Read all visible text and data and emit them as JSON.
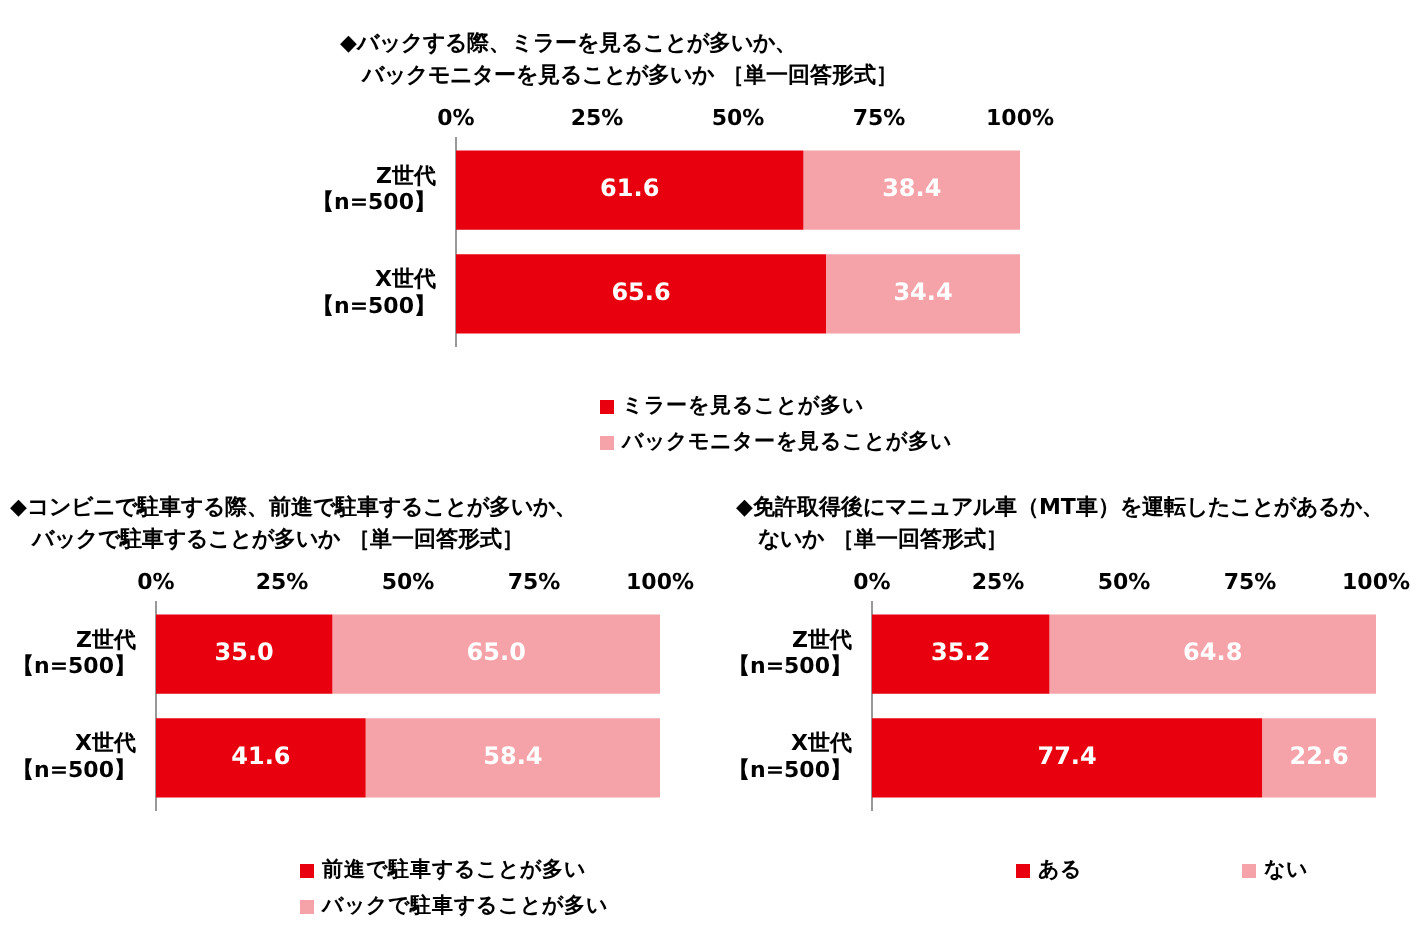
{
  "chart_data": [
    {
      "type": "bar",
      "orientation": "horizontal",
      "stacked": true,
      "title": "◆バックする際、ミラーを見ることが多いか、バックモニターを見ることが多いか ［単一回答形式］",
      "categories": [
        "Z世代【n=500】",
        "X世代【n=500】"
      ],
      "xlim": [
        0,
        100
      ],
      "xticks": [
        {
          "value": 0,
          "label": "0%"
        },
        {
          "value": 25,
          "label": "25%"
        },
        {
          "value": 50,
          "label": "50%"
        },
        {
          "value": 75,
          "label": "75%"
        },
        {
          "value": 100,
          "label": "100%"
        }
      ],
      "legend": "bottom",
      "series": [
        {
          "name": "ミラーを見ることが多い",
          "color": "#e8000f",
          "values": [
            61.6,
            65.6
          ],
          "value_labels": [
            "61.6",
            "65.6"
          ]
        },
        {
          "name": "バックモニターを見ることが多い",
          "color": "#f5a3a8",
          "values": [
            38.4,
            34.4
          ],
          "value_labels": [
            "38.4",
            "34.4"
          ]
        }
      ]
    },
    {
      "type": "bar",
      "orientation": "horizontal",
      "stacked": true,
      "title": "◆コンビニで駐車する際、前進で駐車することが多いか、バックで駐車することが多いか ［単一回答形式］",
      "categories": [
        "Z世代【n=500】",
        "X世代【n=500】"
      ],
      "xlim": [
        0,
        100
      ],
      "xticks": [
        {
          "value": 0,
          "label": "0%"
        },
        {
          "value": 25,
          "label": "25%"
        },
        {
          "value": 50,
          "label": "50%"
        },
        {
          "value": 75,
          "label": "75%"
        },
        {
          "value": 100,
          "label": "100%"
        }
      ],
      "legend": "bottom",
      "series": [
        {
          "name": "前進で駐車することが多い",
          "color": "#e8000f",
          "values": [
            35.0,
            41.6
          ],
          "value_labels": [
            "35.0",
            "41.6"
          ]
        },
        {
          "name": "バックで駐車することが多い",
          "color": "#f5a3a8",
          "values": [
            65.0,
            58.4
          ],
          "value_labels": [
            "65.0",
            "58.4"
          ]
        }
      ]
    },
    {
      "type": "bar",
      "orientation": "horizontal",
      "stacked": true,
      "title": "◆免許取得後にマニュアル車（MT車）を運転したことがあるか、ないか ［単一回答形式］",
      "categories": [
        "Z世代【n=500】",
        "X世代【n=500】"
      ],
      "xlim": [
        0,
        100
      ],
      "xticks": [
        {
          "value": 0,
          "label": "0%"
        },
        {
          "value": 25,
          "label": "25%"
        },
        {
          "value": 50,
          "label": "50%"
        },
        {
          "value": 75,
          "label": "75%"
        },
        {
          "value": 100,
          "label": "100%"
        }
      ],
      "legend": "bottom",
      "series": [
        {
          "name": "ある",
          "color": "#e8000f",
          "values": [
            35.2,
            77.4
          ],
          "value_labels": [
            "35.2",
            "77.4"
          ]
        },
        {
          "name": "ない",
          "color": "#f5a3a8",
          "values": [
            64.8,
            22.6
          ],
          "value_labels": [
            "64.8",
            "22.6"
          ]
        }
      ]
    }
  ]
}
